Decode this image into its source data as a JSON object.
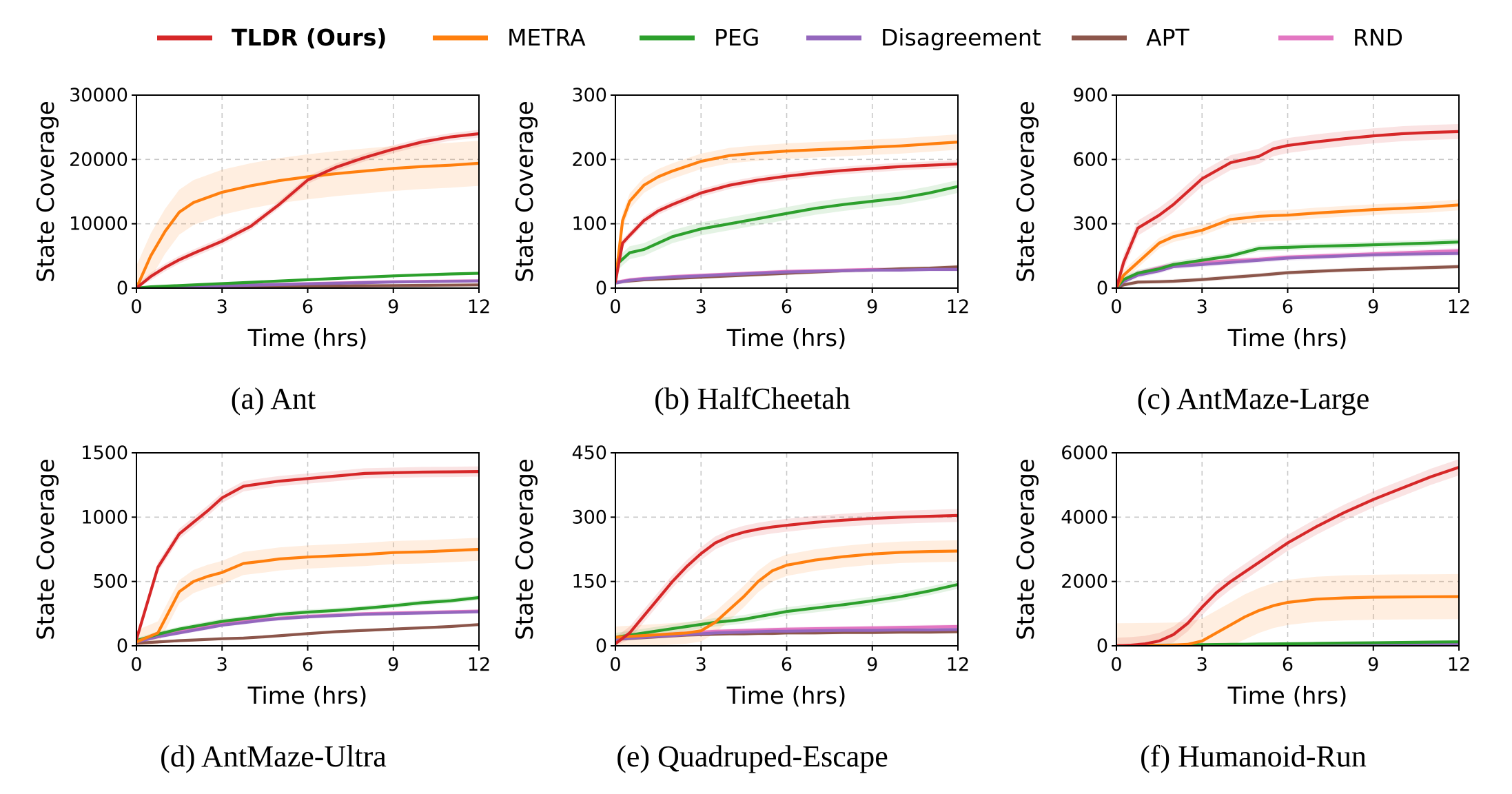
{
  "legend": [
    {
      "label": "TLDR (Ours)",
      "color": "#d62728",
      "bold": true
    },
    {
      "label": "METRA",
      "color": "#ff7f0e",
      "bold": false
    },
    {
      "label": "PEG",
      "color": "#2ca02c",
      "bold": false
    },
    {
      "label": "Disagreement",
      "color": "#9467bd",
      "bold": false
    },
    {
      "label": "APT",
      "color": "#8c564b",
      "bold": false
    },
    {
      "label": "RND",
      "color": "#e377c2",
      "bold": false
    }
  ],
  "chart_data": [
    {
      "type": "line",
      "title": "(a) Ant",
      "xlabel": "Time (hrs)",
      "ylabel": "State Coverage",
      "xlim": [
        0,
        12
      ],
      "ylim": [
        0,
        30000
      ],
      "xticks": [
        0,
        3,
        6,
        9,
        12
      ],
      "yticks": [
        0,
        10000,
        20000,
        30000
      ],
      "grid": true,
      "x": [
        0,
        0.5,
        1,
        1.5,
        2,
        3,
        4,
        5,
        6,
        7,
        8,
        9,
        10,
        11,
        12
      ],
      "series": [
        {
          "name": "TLDR (Ours)",
          "values": [
            0,
            1800,
            3200,
            4400,
            5400,
            7300,
            9600,
            13000,
            16800,
            18800,
            20300,
            21600,
            22700,
            23500,
            24000
          ],
          "band": 600
        },
        {
          "name": "METRA",
          "values": [
            0,
            5000,
            8800,
            11800,
            13300,
            14900,
            15900,
            16700,
            17300,
            17800,
            18200,
            18600,
            18900,
            19100,
            19400
          ],
          "band": 3500
        },
        {
          "name": "PEG",
          "values": [
            0,
            200,
            300,
            400,
            500,
            700,
            900,
            1100,
            1300,
            1500,
            1700,
            1900,
            2050,
            2200,
            2300
          ],
          "band": 200
        },
        {
          "name": "Disagreement",
          "values": [
            0,
            80,
            150,
            200,
            250,
            350,
            450,
            550,
            650,
            750,
            850,
            950,
            1000,
            1050,
            1100
          ],
          "band": 100
        },
        {
          "name": "APT",
          "values": [
            0,
            40,
            70,
            100,
            120,
            160,
            200,
            240,
            280,
            320,
            360,
            400,
            430,
            460,
            500
          ],
          "band": 60
        },
        {
          "name": "RND",
          "values": [
            0,
            90,
            170,
            230,
            290,
            400,
            500,
            600,
            700,
            800,
            900,
            1000,
            1050,
            1100,
            1150
          ],
          "band": 100
        }
      ]
    },
    {
      "type": "line",
      "title": "(b) HalfCheetah",
      "xlabel": "Time (hrs)",
      "ylabel": "State Coverage",
      "xlim": [
        0,
        12
      ],
      "ylim": [
        0,
        300
      ],
      "xticks": [
        0,
        3,
        6,
        9,
        12
      ],
      "yticks": [
        0,
        100,
        200,
        300
      ],
      "grid": true,
      "x": [
        0,
        0.25,
        0.5,
        1,
        1.5,
        2,
        3,
        4,
        5,
        6,
        7,
        8,
        9,
        10,
        11,
        12
      ],
      "series": [
        {
          "name": "TLDR (Ours)",
          "values": [
            10,
            70,
            82,
            105,
            120,
            130,
            148,
            160,
            168,
            174,
            179,
            183,
            186,
            189,
            191,
            193
          ],
          "band": 6
        },
        {
          "name": "METRA",
          "values": [
            10,
            105,
            135,
            160,
            173,
            182,
            197,
            206,
            210,
            213,
            215,
            217,
            219,
            221,
            224,
            227
          ],
          "band": 12
        },
        {
          "name": "PEG",
          "values": [
            35,
            45,
            55,
            60,
            70,
            80,
            92,
            100,
            108,
            116,
            124,
            130,
            135,
            140,
            148,
            158
          ],
          "band": 10
        },
        {
          "name": "Disagreement",
          "values": [
            8,
            10,
            12,
            14,
            16,
            17,
            19,
            21,
            23,
            25,
            26,
            27,
            28,
            28,
            29,
            29
          ],
          "band": 3
        },
        {
          "name": "APT",
          "values": [
            8,
            10,
            11,
            13,
            14,
            15,
            17,
            19,
            21,
            23,
            25,
            27,
            28,
            30,
            31,
            33
          ],
          "band": 3
        },
        {
          "name": "RND",
          "values": [
            9,
            11,
            13,
            15,
            16,
            18,
            20,
            22,
            24,
            26,
            27,
            28,
            29,
            29,
            30,
            30
          ],
          "band": 3
        }
      ]
    },
    {
      "type": "line",
      "title": "(c) AntMaze-Large",
      "xlabel": "Time (hrs)",
      "ylabel": "State Coverage",
      "xlim": [
        0,
        12
      ],
      "ylim": [
        0,
        900
      ],
      "xticks": [
        0,
        3,
        6,
        9,
        12
      ],
      "yticks": [
        0,
        300,
        600,
        900
      ],
      "grid": true,
      "x": [
        0,
        0.25,
        0.75,
        1.5,
        2,
        3,
        4,
        5,
        5.5,
        6,
        7,
        8,
        9,
        10,
        11,
        12
      ],
      "series": [
        {
          "name": "TLDR (Ours)",
          "values": [
            0,
            120,
            280,
            340,
            390,
            510,
            585,
            615,
            650,
            665,
            682,
            697,
            710,
            720,
            726,
            730
          ],
          "band": 35
        },
        {
          "name": "METRA",
          "values": [
            0,
            60,
            120,
            210,
            240,
            270,
            320,
            335,
            338,
            340,
            350,
            358,
            366,
            372,
            378,
            388
          ],
          "band": 25
        },
        {
          "name": "PEG",
          "values": [
            0,
            40,
            70,
            90,
            110,
            130,
            150,
            185,
            188,
            190,
            195,
            198,
            202,
            206,
            210,
            215
          ],
          "band": 15
        },
        {
          "name": "Disagreement",
          "values": [
            0,
            30,
            60,
            80,
            100,
            110,
            120,
            130,
            135,
            140,
            145,
            150,
            155,
            158,
            160,
            162
          ],
          "band": 12
        },
        {
          "name": "APT",
          "values": [
            0,
            15,
            28,
            30,
            32,
            40,
            50,
            60,
            66,
            72,
            78,
            84,
            88,
            92,
            96,
            100
          ],
          "band": 10
        },
        {
          "name": "RND",
          "values": [
            0,
            35,
            70,
            95,
            110,
            120,
            128,
            135,
            140,
            145,
            150,
            155,
            160,
            165,
            170,
            175
          ],
          "band": 12
        }
      ]
    },
    {
      "type": "line",
      "title": "(d) AntMaze-Ultra",
      "xlabel": "Time (hrs)",
      "ylabel": "State Coverage",
      "xlim": [
        0,
        12
      ],
      "ylim": [
        0,
        1500
      ],
      "xticks": [
        0,
        3,
        6,
        9,
        12
      ],
      "yticks": [
        0,
        500,
        1000,
        1500
      ],
      "grid": true,
      "x": [
        0,
        0.75,
        1.5,
        2,
        2.5,
        3,
        3.75,
        4.5,
        5,
        6,
        7,
        8,
        9,
        10,
        11,
        12
      ],
      "series": [
        {
          "name": "TLDR (Ours)",
          "values": [
            50,
            610,
            870,
            960,
            1050,
            1150,
            1240,
            1265,
            1280,
            1300,
            1320,
            1340,
            1345,
            1350,
            1352,
            1355
          ],
          "band": 40
        },
        {
          "name": "METRA",
          "values": [
            30,
            100,
            420,
            500,
            540,
            570,
            640,
            660,
            675,
            690,
            700,
            710,
            725,
            730,
            740,
            750
          ],
          "band": 90
        },
        {
          "name": "PEG",
          "values": [
            40,
            90,
            130,
            150,
            170,
            190,
            210,
            230,
            245,
            262,
            275,
            292,
            312,
            335,
            350,
            375
          ],
          "band": 20
        },
        {
          "name": "Disagreement",
          "values": [
            30,
            70,
            100,
            120,
            140,
            160,
            180,
            200,
            210,
            225,
            235,
            245,
            250,
            255,
            260,
            265
          ],
          "band": 15
        },
        {
          "name": "APT",
          "values": [
            20,
            30,
            40,
            45,
            50,
            55,
            60,
            70,
            78,
            95,
            110,
            120,
            130,
            140,
            150,
            165
          ],
          "band": 10
        },
        {
          "name": "RND",
          "values": [
            40,
            80,
            120,
            140,
            160,
            175,
            190,
            205,
            215,
            230,
            240,
            250,
            255,
            260,
            265,
            270
          ],
          "band": 15
        }
      ]
    },
    {
      "type": "line",
      "title": "(e) Quadruped-Escape",
      "xlabel": "Time (hrs)",
      "ylabel": "State Coverage",
      "xlim": [
        0,
        12
      ],
      "ylim": [
        0,
        450
      ],
      "xticks": [
        0,
        3,
        6,
        9,
        12
      ],
      "yticks": [
        0,
        150,
        300,
        450
      ],
      "grid": true,
      "x": [
        0,
        0.5,
        1,
        1.5,
        2,
        2.5,
        3,
        3.5,
        4,
        4.5,
        5,
        5.5,
        6,
        7,
        8,
        9,
        10,
        11,
        12
      ],
      "series": [
        {
          "name": "TLDR (Ours)",
          "values": [
            5,
            30,
            70,
            110,
            150,
            185,
            215,
            240,
            255,
            265,
            272,
            277,
            281,
            288,
            293,
            297,
            300,
            302,
            304
          ],
          "band": 15
        },
        {
          "name": "METRA",
          "values": [
            20,
            22,
            24,
            26,
            28,
            30,
            35,
            55,
            85,
            115,
            150,
            175,
            188,
            200,
            208,
            214,
            218,
            220,
            221
          ],
          "band": 25
        },
        {
          "name": "PEG",
          "values": [
            20,
            25,
            30,
            35,
            40,
            45,
            50,
            55,
            58,
            62,
            68,
            74,
            80,
            88,
            96,
            105,
            115,
            128,
            143
          ],
          "band": 10
        },
        {
          "name": "Disagreement",
          "values": [
            15,
            18,
            20,
            22,
            24,
            26,
            28,
            30,
            31,
            32,
            33,
            34,
            34,
            35,
            36,
            36,
            37,
            37,
            38
          ],
          "band": 4
        },
        {
          "name": "APT",
          "values": [
            15,
            17,
            19,
            21,
            23,
            25,
            26,
            27,
            28,
            28,
            29,
            29,
            30,
            30,
            31,
            31,
            32,
            32,
            33
          ],
          "band": 4
        },
        {
          "name": "RND",
          "values": [
            15,
            19,
            22,
            25,
            28,
            30,
            32,
            34,
            35,
            36,
            37,
            38,
            39,
            40,
            41,
            42,
            43,
            44,
            45
          ],
          "band": 5
        }
      ]
    },
    {
      "type": "line",
      "title": "(f) Humanoid-Run",
      "xlabel": "Time (hrs)",
      "ylabel": "State Coverage",
      "xlim": [
        0,
        12
      ],
      "ylim": [
        0,
        6000
      ],
      "xticks": [
        0,
        3,
        6,
        9,
        12
      ],
      "yticks": [
        0,
        2000,
        4000,
        6000
      ],
      "grid": true,
      "x": [
        0,
        0.5,
        1,
        1.5,
        2,
        2.5,
        3,
        3.5,
        4,
        4.5,
        5,
        5.5,
        6,
        7,
        8,
        9,
        10,
        11,
        12
      ],
      "series": [
        {
          "name": "TLDR (Ours)",
          "values": [
            0,
            20,
            60,
            150,
            350,
            700,
            1200,
            1650,
            2000,
            2300,
            2600,
            2900,
            3200,
            3700,
            4150,
            4550,
            4900,
            5250,
            5550
          ],
          "band": 250
        },
        {
          "name": "METRA",
          "values": [
            0,
            5,
            10,
            15,
            25,
            45,
            150,
            400,
            650,
            900,
            1100,
            1250,
            1350,
            1450,
            1490,
            1510,
            1520,
            1525,
            1530
          ],
          "band": 700
        },
        {
          "name": "PEG",
          "values": [
            0,
            10,
            15,
            20,
            25,
            30,
            35,
            40,
            45,
            50,
            55,
            60,
            65,
            75,
            85,
            95,
            105,
            115,
            125
          ],
          "band": 15
        },
        {
          "name": "Disagreement",
          "values": [
            0,
            5,
            8,
            10,
            12,
            14,
            16,
            18,
            20,
            22,
            24,
            26,
            28,
            32,
            36,
            40,
            44,
            48,
            52
          ],
          "band": 8
        },
        {
          "name": "APT",
          "values": [
            0,
            5,
            8,
            10,
            12,
            14,
            16,
            18,
            20,
            22,
            24,
            26,
            28,
            32,
            36,
            40,
            44,
            48,
            52
          ],
          "band": 8
        },
        {
          "name": "RND",
          "values": [
            0,
            6,
            9,
            12,
            14,
            16,
            18,
            20,
            22,
            24,
            26,
            28,
            30,
            34,
            38,
            42,
            46,
            50,
            54
          ],
          "band": 8
        }
      ]
    }
  ]
}
